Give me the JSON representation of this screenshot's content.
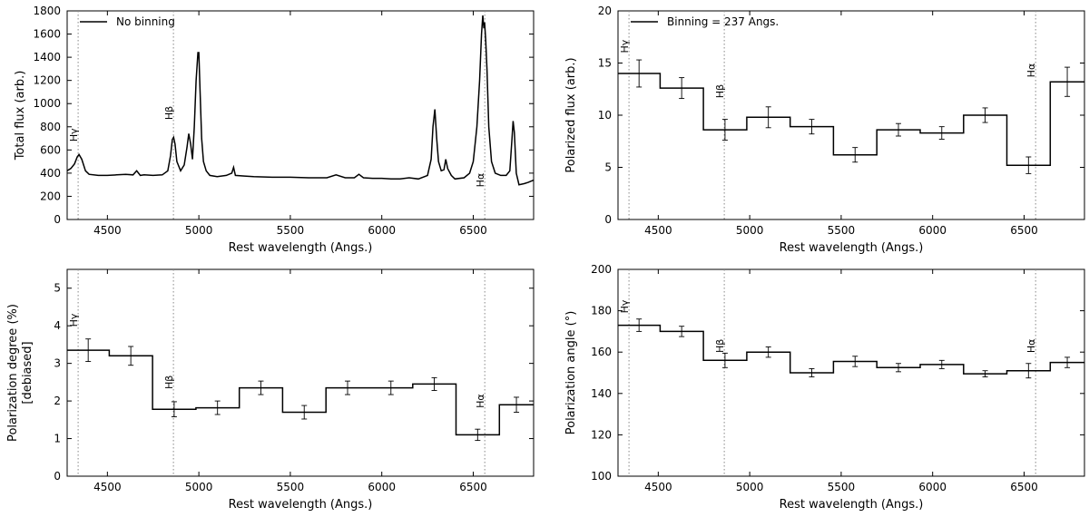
{
  "chart_data": [
    {
      "id": "total-flux",
      "type": "line",
      "xlabel": "Rest wavelength (Angs.)",
      "ylabel": "Total flux (arb.)",
      "xlim": [
        4280,
        6830
      ],
      "ylim": [
        0,
        1800
      ],
      "xticks": [
        4500,
        5000,
        5500,
        6000,
        6500
      ],
      "yticks": [
        0,
        200,
        400,
        600,
        800,
        1000,
        1200,
        1400,
        1600,
        1800
      ],
      "legend": {
        "label": "No binning",
        "position": "top-left"
      },
      "lines": [
        {
          "label": "Hγ",
          "x": 4340,
          "y": 730
        },
        {
          "label": "Hβ",
          "x": 4861,
          "y": 920
        },
        {
          "label": "Hα",
          "x": 6563,
          "y": 340
        }
      ],
      "series": [
        {
          "x": [
            4280,
            4300,
            4320,
            4335,
            4345,
            4360,
            4380,
            4400,
            4450,
            4500,
            4550,
            4600,
            4640,
            4660,
            4680,
            4700,
            4750,
            4800,
            4830,
            4845,
            4855,
            4862,
            4870,
            4880,
            4900,
            4920,
            4935,
            4945,
            4955,
            4965,
            4975,
            4985,
            4995,
            5000,
            5007,
            5015,
            5025,
            5040,
            5060,
            5100,
            5150,
            5180,
            5190,
            5200,
            5250,
            5300,
            5400,
            5500,
            5600,
            5700,
            5750,
            5800,
            5850,
            5875,
            5900,
            5950,
            6000,
            6050,
            6100,
            6150,
            6200,
            6250,
            6270,
            6280,
            6290,
            6300,
            6310,
            6325,
            6340,
            6350,
            6360,
            6380,
            6400,
            6450,
            6480,
            6500,
            6520,
            6535,
            6545,
            6552,
            6558,
            6562,
            6568,
            6575,
            6585,
            6600,
            6620,
            6650,
            6680,
            6700,
            6712,
            6718,
            6725,
            6735,
            6750,
            6780,
            6800,
            6830
          ],
          "y": [
            420,
            440,
            480,
            540,
            560,
            520,
            420,
            390,
            380,
            380,
            385,
            390,
            385,
            420,
            380,
            385,
            380,
            385,
            420,
            550,
            690,
            710,
            650,
            500,
            420,
            470,
            620,
            740,
            650,
            520,
            800,
            1200,
            1440,
            1440,
            1100,
            700,
            500,
            420,
            380,
            370,
            380,
            400,
            450,
            380,
            375,
            370,
            365,
            365,
            360,
            360,
            385,
            360,
            360,
            390,
            360,
            355,
            355,
            350,
            350,
            360,
            350,
            380,
            520,
            800,
            950,
            700,
            500,
            420,
            430,
            520,
            440,
            380,
            350,
            360,
            400,
            500,
            800,
            1200,
            1600,
            1760,
            1650,
            1700,
            1550,
            1300,
            800,
            500,
            400,
            380,
            380,
            420,
            700,
            850,
            750,
            400,
            300,
            310,
            320,
            340
          ]
        }
      ]
    },
    {
      "id": "polarized-flux",
      "type": "line",
      "xlabel": "Rest wavelength (Angs.)",
      "ylabel": "Polarized flux (arb.)",
      "xlim": [
        4280,
        6830
      ],
      "ylim": [
        0,
        20
      ],
      "xticks": [
        4500,
        5000,
        5500,
        6000,
        6500
      ],
      "yticks": [
        0,
        5,
        10,
        15,
        20
      ],
      "legend": {
        "label": "Binning = 237 Angs.",
        "position": "top-left"
      },
      "lines": [
        {
          "label": "Hγ",
          "x": 4340,
          "y": 16.6
        },
        {
          "label": "Hβ",
          "x": 4861,
          "y": 12.3
        },
        {
          "label": "Hα",
          "x": 6563,
          "y": 14.3
        }
      ],
      "edges": [
        4280,
        4510,
        4747,
        4984,
        5221,
        5458,
        5695,
        5932,
        6169,
        6406,
        6643,
        6830
      ],
      "values": [
        14.0,
        12.6,
        8.6,
        9.8,
        8.9,
        6.2,
        8.6,
        8.3,
        10.0,
        5.2,
        13.2
      ],
      "centers": [
        4395,
        4628,
        4865,
        5102,
        5339,
        5576,
        5813,
        6050,
        6287,
        6524,
        6736
      ],
      "errors": [
        1.3,
        1.0,
        1.0,
        1.0,
        0.7,
        0.7,
        0.6,
        0.6,
        0.7,
        0.8,
        1.4
      ]
    },
    {
      "id": "polarization-degree",
      "type": "line",
      "xlabel": "Rest wavelength (Angs.)",
      "ylabel": "Polarization degree (%)",
      "ylabel2": "[debiased]",
      "xlim": [
        4280,
        6830
      ],
      "ylim": [
        0,
        5.5
      ],
      "xticks": [
        4500,
        5000,
        5500,
        6000,
        6500
      ],
      "yticks": [
        0,
        1,
        2,
        3,
        4,
        5
      ],
      "lines": [
        {
          "label": "Hγ",
          "x": 4340,
          "y": 4.15
        },
        {
          "label": "Hβ",
          "x": 4861,
          "y": 2.5
        },
        {
          "label": "Hα",
          "x": 6563,
          "y": 2.0
        }
      ],
      "edges": [
        4280,
        4510,
        4747,
        4984,
        5221,
        5458,
        5695,
        5932,
        6169,
        6406,
        6643,
        6830
      ],
      "values": [
        3.35,
        3.2,
        1.78,
        1.82,
        2.35,
        1.7,
        2.35,
        2.35,
        2.45,
        1.1,
        1.9
      ],
      "centers": [
        4395,
        4628,
        4865,
        5102,
        5339,
        5576,
        5813,
        6050,
        6287,
        6524,
        6736
      ],
      "errors": [
        0.3,
        0.25,
        0.2,
        0.18,
        0.18,
        0.18,
        0.18,
        0.18,
        0.17,
        0.15,
        0.2
      ]
    },
    {
      "id": "polarization-angle",
      "type": "line",
      "xlabel": "Rest wavelength (Angs.)",
      "ylabel": "Polarization angle (°)",
      "xlim": [
        4280,
        6830
      ],
      "ylim": [
        100,
        200
      ],
      "xticks": [
        4500,
        5000,
        5500,
        6000,
        6500
      ],
      "yticks": [
        100,
        120,
        140,
        160,
        180,
        200
      ],
      "lines": [
        {
          "label": "Hγ",
          "x": 4340,
          "y": 182
        },
        {
          "label": "Hβ",
          "x": 4861,
          "y": 163
        },
        {
          "label": "Hα",
          "x": 6563,
          "y": 163
        }
      ],
      "edges": [
        4280,
        4510,
        4747,
        4984,
        5221,
        5458,
        5695,
        5932,
        6169,
        6406,
        6643,
        6830
      ],
      "values": [
        173,
        170,
        156,
        160,
        150,
        155.5,
        152.5,
        154,
        149.5,
        151,
        155
      ],
      "centers": [
        4395,
        4628,
        4865,
        5102,
        5339,
        5576,
        5813,
        6050,
        6287,
        6524,
        6736
      ],
      "errors": [
        3,
        2.5,
        3.5,
        2.5,
        2,
        2.5,
        2,
        2,
        1.5,
        3.5,
        2.5
      ]
    }
  ]
}
